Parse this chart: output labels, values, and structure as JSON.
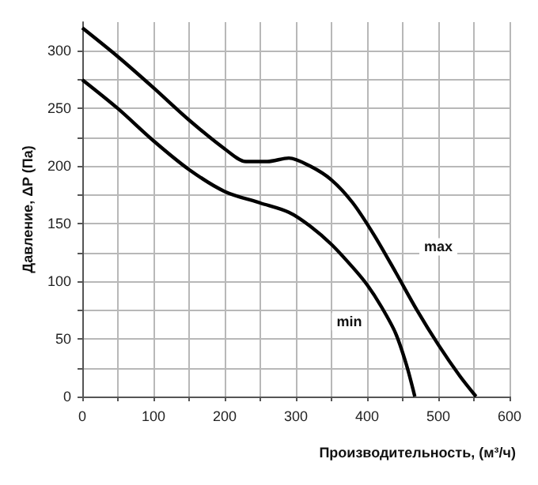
{
  "chart_data": {
    "type": "line",
    "xlabel": "Производительность, (м³/ч)",
    "ylabel": "Давление, ΔP (Па)",
    "xlim": [
      0,
      600
    ],
    "ylim": [
      0,
      325
    ],
    "xticks": [
      0,
      {
        "value": 50,
        "label": null
      },
      100,
      {
        "value": 150,
        "label": null
      },
      200,
      {
        "value": 250,
        "label": null
      },
      300,
      {
        "value": 350,
        "label": null
      },
      400,
      {
        "value": 450,
        "label": null
      },
      500,
      {
        "value": 550,
        "label": null
      },
      600
    ],
    "yticks": [
      0,
      {
        "value": 25,
        "label": null
      },
      50,
      {
        "value": 75,
        "label": null
      },
      100,
      {
        "value": 125,
        "label": null
      },
      150,
      {
        "value": 175,
        "label": null
      },
      200,
      {
        "value": 225,
        "label": null
      },
      250,
      {
        "value": 275,
        "label": null
      },
      300
    ],
    "grid": true,
    "marker": "none",
    "line_style": "solid",
    "series": [
      {
        "color": "#000000",
        "x": [
          0,
          50,
          100,
          150,
          200,
          230,
          260,
          290,
          320,
          350,
          380,
          410,
          440,
          470,
          500,
          530,
          553
        ],
        "values": [
          320,
          295,
          268,
          240,
          215,
          204,
          204,
          207,
          200,
          188,
          168,
          140,
          108,
          75,
          45,
          18,
          0
        ]
      },
      {
        "color": "#000000",
        "x": [
          0,
          50,
          100,
          150,
          200,
          250,
          290,
          320,
          350,
          380,
          400,
          420,
          440,
          455,
          467
        ],
        "values": [
          275,
          250,
          222,
          197,
          178,
          168,
          160,
          148,
          132,
          112,
          97,
          78,
          55,
          28,
          0
        ]
      }
    ],
    "annotations": [
      {
        "text": "max",
        "x": 500,
        "y": 130
      },
      {
        "text": "min",
        "x": 375,
        "y": 65
      }
    ]
  }
}
